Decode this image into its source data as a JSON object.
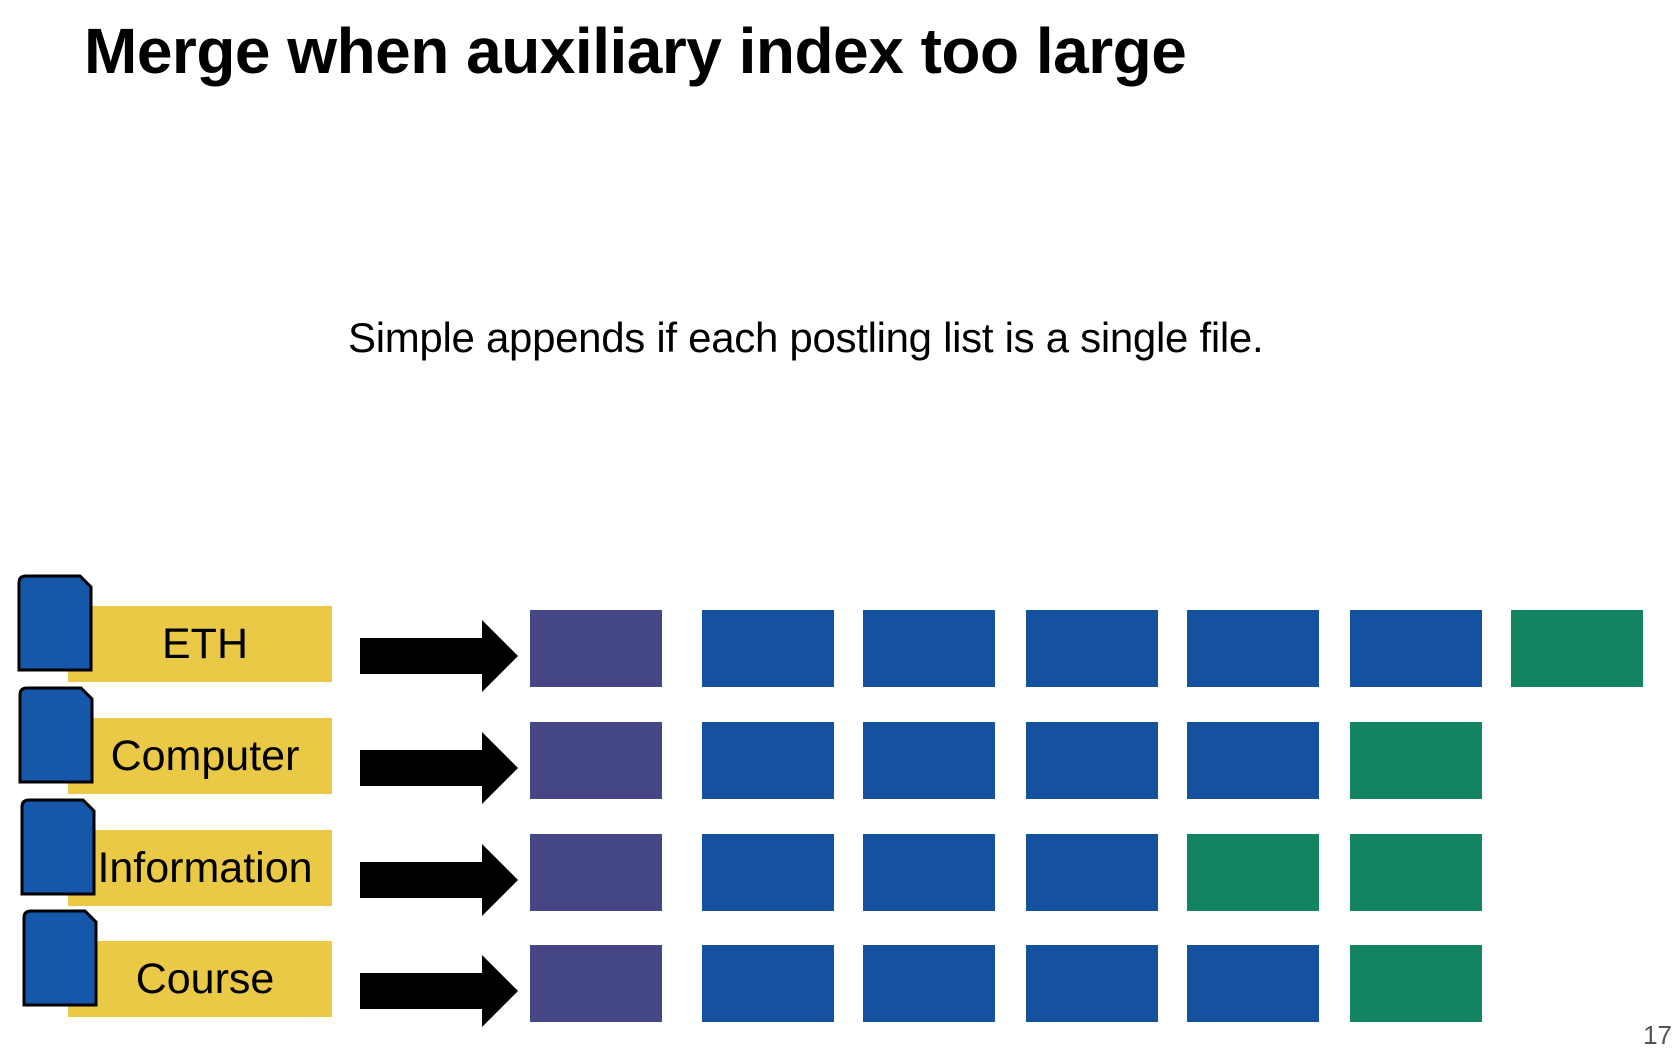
{
  "slide": {
    "title": "Merge when auxiliary index too large",
    "subtitle": "Simple appends if each postling list is a single file.",
    "page_number": "17"
  },
  "colors": {
    "label_fill": "#e9c945",
    "doc_icon_fill": "#1557a8",
    "auxiliary_block": "#454686",
    "main_block": "#1452a0",
    "appended_block": "#138461",
    "arrow": "#000000"
  },
  "rows": [
    {
      "term": "ETH",
      "blocks": [
        "auxiliary",
        "main",
        "main",
        "main",
        "main",
        "main",
        "appended"
      ]
    },
    {
      "term": "Computer",
      "blocks": [
        "auxiliary",
        "main",
        "main",
        "main",
        "main",
        "appended"
      ]
    },
    {
      "term": "Information",
      "blocks": [
        "auxiliary",
        "main",
        "main",
        "main",
        "appended",
        "appended"
      ]
    },
    {
      "term": "Course",
      "blocks": [
        "auxiliary",
        "main",
        "main",
        "main",
        "main",
        "appended"
      ]
    }
  ]
}
